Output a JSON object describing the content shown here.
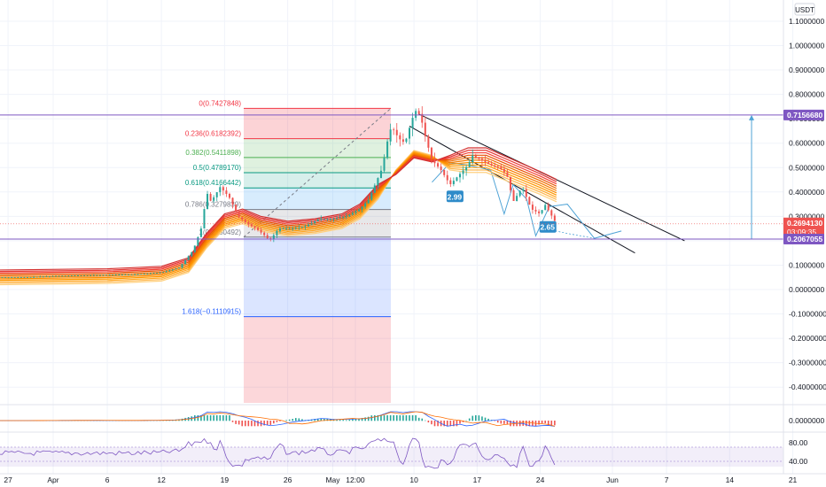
{
  "currency": "USDT",
  "chart_data": {
    "type": "line",
    "series_kind": "candlestick price with EMA ribbon",
    "y_axis": {
      "ticks": [
        "1.1000000",
        "1.0000000",
        "0.9000000",
        "0.8000000",
        "0.7000000",
        "0.6000000",
        "0.5000000",
        "0.4000000",
        "0.3000000",
        "0.2000000",
        "0.1000000",
        "0.0000000",
        "-0.1000000",
        "-0.2000000",
        "-0.3000000",
        "-0.4000000"
      ],
      "tick_values": [
        1.1,
        1.0,
        0.9,
        0.8,
        0.7,
        0.6,
        0.5,
        0.4,
        0.3,
        0.2,
        0.1,
        0.0,
        -0.1,
        -0.2,
        -0.3,
        -0.4
      ],
      "range": [
        -0.48,
        1.15
      ]
    },
    "x_axis": {
      "ticks": [
        "27",
        "Apr",
        "6",
        "12",
        "19",
        "26",
        "May",
        "12:00",
        "10",
        "17",
        "24",
        "Jun",
        "7",
        "14",
        "21"
      ],
      "tick_days": [
        -5,
        0,
        6,
        12,
        19,
        26,
        31,
        33.5,
        40,
        47,
        54,
        62,
        68,
        75,
        82
      ],
      "range": [
        -6,
        85
      ]
    },
    "price_labels": {
      "upper": "0.7156680",
      "current": "0.2694130",
      "countdown": "03:09:35",
      "lower": "0.2067055"
    },
    "fib_levels": [
      {
        "label": "0(0.7427848)",
        "value": 0.7427848
      },
      {
        "label": "0.236(0.6182392)",
        "value": 0.6182392
      },
      {
        "label": "0.382(0.5411898)",
        "value": 0.5411898
      },
      {
        "label": "0.5(0.4789170)",
        "value": 0.478917
      },
      {
        "label": "0.618(0.4166442)",
        "value": 0.4166442
      },
      {
        "label": "0.786(0.3279839)",
        "value": 0.3279839
      },
      {
        "label": "1(0.2150492)",
        "value": 0.2150492
      },
      {
        "label": "1.618(−0.1110915)",
        "value": -0.1110915
      }
    ],
    "wave_labels": [
      "2.99",
      "2.65"
    ],
    "price_path": [
      [
        -6,
        0.05
      ],
      [
        -3,
        0.05
      ],
      [
        0,
        0.055
      ],
      [
        3,
        0.058
      ],
      [
        6,
        0.06
      ],
      [
        9,
        0.062
      ],
      [
        12,
        0.07
      ],
      [
        14,
        0.09
      ],
      [
        15.5,
        0.16
      ],
      [
        16.5,
        0.26
      ],
      [
        17,
        0.4
      ],
      [
        17.5,
        0.36
      ],
      [
        18.5,
        0.42
      ],
      [
        19.5,
        0.38
      ],
      [
        20.5,
        0.3
      ],
      [
        21.5,
        0.27
      ],
      [
        22.5,
        0.25
      ],
      [
        23.5,
        0.22
      ],
      [
        24,
        0.2
      ],
      [
        25,
        0.25
      ],
      [
        26.5,
        0.25
      ],
      [
        28,
        0.26
      ],
      [
        29.5,
        0.29
      ],
      [
        31,
        0.29
      ],
      [
        32.5,
        0.3
      ],
      [
        34,
        0.33
      ],
      [
        35,
        0.37
      ],
      [
        35.8,
        0.44
      ],
      [
        36.5,
        0.5
      ],
      [
        37,
        0.6
      ],
      [
        37.5,
        0.67
      ],
      [
        38.3,
        0.62
      ],
      [
        39,
        0.6
      ],
      [
        39.8,
        0.7
      ],
      [
        40.3,
        0.74
      ],
      [
        40.8,
        0.7
      ],
      [
        41.3,
        0.62
      ],
      [
        42,
        0.53
      ],
      [
        43,
        0.49
      ],
      [
        44,
        0.43
      ],
      [
        45,
        0.47
      ],
      [
        46,
        0.51
      ],
      [
        46.5,
        0.55
      ],
      [
        47.5,
        0.53
      ],
      [
        48.5,
        0.51
      ],
      [
        49.5,
        0.5
      ],
      [
        50.3,
        0.47
      ],
      [
        51,
        0.36
      ],
      [
        52,
        0.42
      ],
      [
        53,
        0.33
      ],
      [
        54,
        0.31
      ],
      [
        54.5,
        0.35
      ],
      [
        55.3,
        0.3
      ],
      [
        55.8,
        0.27
      ]
    ],
    "ema_ribbon": [
      [
        -6,
        0.05
      ],
      [
        6,
        0.055
      ],
      [
        12,
        0.065
      ],
      [
        15,
        0.1
      ],
      [
        17,
        0.2
      ],
      [
        19,
        0.28
      ],
      [
        21,
        0.3
      ],
      [
        23,
        0.27
      ],
      [
        26,
        0.25
      ],
      [
        29,
        0.26
      ],
      [
        32,
        0.28
      ],
      [
        34,
        0.32
      ],
      [
        36,
        0.4
      ],
      [
        38,
        0.52
      ],
      [
        40,
        0.6
      ],
      [
        42,
        0.58
      ],
      [
        44,
        0.52
      ],
      [
        46,
        0.51
      ],
      [
        48,
        0.51
      ],
      [
        50,
        0.48
      ],
      [
        52,
        0.45
      ],
      [
        54,
        0.42
      ],
      [
        55.8,
        0.39
      ]
    ],
    "channel_upper": [
      [
        40.5,
        0.72
      ],
      [
        70,
        0.2
      ]
    ],
    "channel_lower": [
      [
        39.5,
        0.67
      ],
      [
        64.5,
        0.15
      ]
    ],
    "sub_indicators": {
      "macd_label": "0.0000000",
      "rsi_labels": [
        "80.00",
        "40.00"
      ]
    },
    "grid": true
  }
}
